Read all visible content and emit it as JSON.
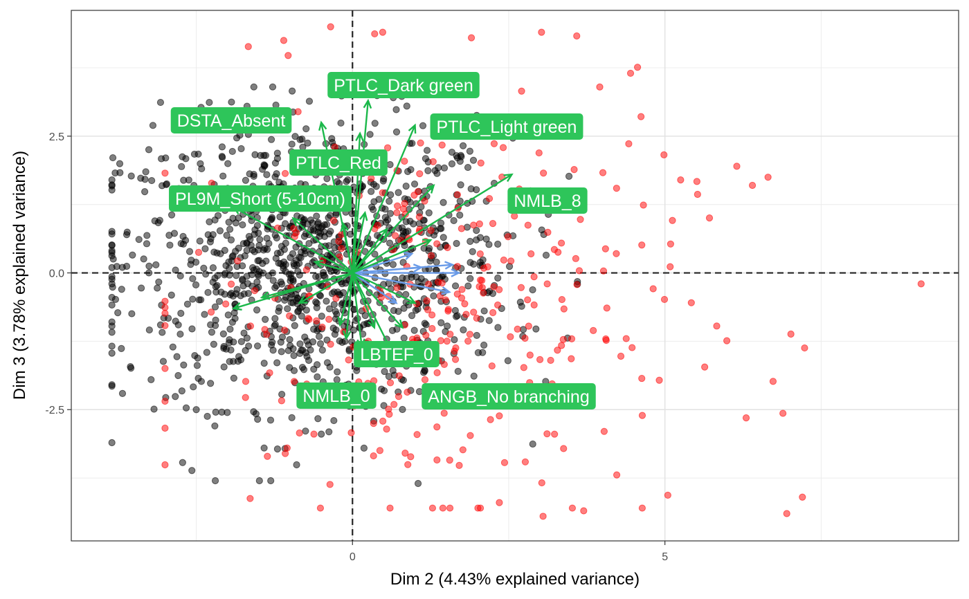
{
  "chart_data": {
    "type": "scatter",
    "xlabel": "Dim 2 (4.43% explained variance)",
    "ylabel": "Dim 3 (3.78% explained variance)",
    "xlim": [
      -4.5,
      9.7
    ],
    "ylim": [
      -4.9,
      4.8
    ],
    "x_ticks": [
      0,
      5
    ],
    "x_tick_labels": [
      "0",
      "5"
    ],
    "y_ticks": [
      -2.5,
      0,
      2.5
    ],
    "y_tick_labels": [
      "-2.5",
      "0.0",
      "2.5"
    ],
    "grid": true,
    "reference_lines": {
      "x": 0,
      "y": 0,
      "style": "dashed"
    },
    "colors": {
      "points_black": "#000000",
      "points_red": "#ff0000",
      "variable_arrows": "#1bb84a",
      "supplementary_arrows": "#6a9be8",
      "label_fill": "#2ec55a"
    },
    "variables": [
      {
        "label": "PTLC_Dark green",
        "x": 0.25,
        "y": 3.15
      },
      {
        "label": "DSTA_Absent",
        "x": -0.5,
        "y": 2.75
      },
      {
        "label": "PTLC_Light green",
        "x": 1.0,
        "y": 2.7
      },
      {
        "label": "PTLC_Red",
        "x": 0.12,
        "y": 2.55
      },
      {
        "label": "PL9M_Short (5-10cm)",
        "x": -1.9,
        "y": 1.2
      },
      {
        "label": "NMLB_8",
        "x": 2.55,
        "y": 1.8
      },
      {
        "label": "LBTEF_0",
        "x": 0.15,
        "y": -1.35
      },
      {
        "label": "NMLB_0",
        "x": -0.1,
        "y": -1.2
      },
      {
        "label": "ANGB_No branching",
        "x": 0.7,
        "y": -1.6
      }
    ],
    "unlabeled_variable_arrows": [
      {
        "x": -1.9,
        "y": -0.65
      },
      {
        "x": -1.45,
        "y": -0.45
      },
      {
        "x": -0.85,
        "y": -0.55
      },
      {
        "x": -0.6,
        "y": 0.2
      },
      {
        "x": -0.95,
        "y": 1.0
      },
      {
        "x": -0.15,
        "y": 0.9
      },
      {
        "x": 0.2,
        "y": 1.1
      },
      {
        "x": 0.55,
        "y": 0.8
      },
      {
        "x": 1.3,
        "y": 1.6
      },
      {
        "x": 1.25,
        "y": 0.6
      },
      {
        "x": 1.0,
        "y": -0.55
      },
      {
        "x": 0.8,
        "y": -1.0
      },
      {
        "x": 0.35,
        "y": -1.0
      },
      {
        "x": -0.2,
        "y": -0.95
      }
    ],
    "supplementary_arrows": [
      {
        "x": 1.6,
        "y": 0.15
      },
      {
        "x": 1.7,
        "y": 0.0
      },
      {
        "x": 1.55,
        "y": -0.35
      },
      {
        "x": 1.1,
        "y": 0.1
      },
      {
        "x": 0.95,
        "y": 0.35
      },
      {
        "x": 0.7,
        "y": -0.55
      }
    ],
    "point_clouds": [
      {
        "color": "black",
        "approx_count": 1200,
        "center": [
          -0.6,
          0.2
        ],
        "spread": [
          1.55,
          1.3
        ]
      },
      {
        "color": "red",
        "approx_count": 330,
        "center": [
          1.3,
          -0.6
        ],
        "spread": [
          2.0,
          1.9
        ]
      }
    ],
    "notable_points": [
      {
        "color": "red",
        "x": 9.1,
        "y": -0.2
      },
      {
        "color": "red",
        "x": 4.45,
        "y": 3.65
      },
      {
        "color": "red",
        "x": 6.95,
        "y": -4.4
      },
      {
        "color": "red",
        "x": 7.2,
        "y": -4.1
      },
      {
        "color": "red",
        "x": 3.05,
        "y": -4.45
      },
      {
        "color": "red",
        "x": 3.7,
        "y": -4.35
      },
      {
        "color": "red",
        "x": 2.35,
        "y": -4.2
      },
      {
        "color": "red",
        "x": 6.65,
        "y": 1.75
      },
      {
        "color": "red",
        "x": 6.15,
        "y": 1.95
      },
      {
        "color": "red",
        "x": 6.4,
        "y": 1.6
      },
      {
        "color": "red",
        "x": 6.3,
        "y": -2.65
      },
      {
        "color": "red",
        "x": -0.35,
        "y": 4.5
      },
      {
        "color": "red",
        "x": -1.1,
        "y": 4.25
      },
      {
        "color": "black",
        "x": -3.85,
        "y": -0.2
      },
      {
        "color": "black",
        "x": -2.5,
        "y": -2.5
      },
      {
        "color": "black",
        "x": 1.05,
        "y": -3.85
      },
      {
        "color": "black",
        "x": 0.75,
        "y": 3.4
      }
    ]
  }
}
